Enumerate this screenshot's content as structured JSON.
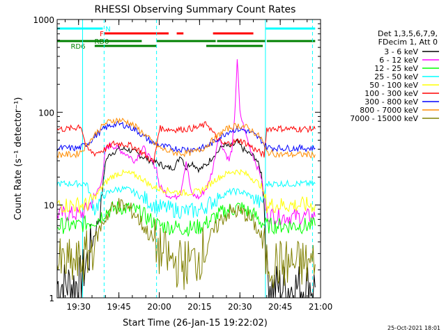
{
  "chart_data": {
    "type": "line",
    "title": "RHESSI Observing Summary Count Rates",
    "xlabel": "Start Time (26-Jan-15 19:22:02)",
    "ylabel": "Count Rate (s⁻¹ detector⁻¹)",
    "y_scale": "log",
    "ylim": [
      1,
      1000
    ],
    "xlim": [
      "19:22:02",
      "21:00:00"
    ],
    "x_unit": "time of day (HH:MM)",
    "x_ticks": [
      "19:30",
      "19:45",
      "20:00",
      "20:15",
      "20:30",
      "20:45",
      "21:00"
    ],
    "y_ticks": [
      "1",
      "10",
      "100",
      "1000"
    ],
    "timestamp": "25-Oct-2021 18:01",
    "legend_header": [
      "Det 1,3,5,6,7,9,",
      "FDecim 1, Att 0"
    ],
    "vertical_lines": [
      {
        "time": "19:31:30",
        "style": "solid",
        "color": "#00ffff"
      },
      {
        "time": "19:39:30",
        "style": "dashed",
        "color": "#00ffff"
      },
      {
        "time": "19:59:00",
        "style": "dashed",
        "color": "#00ffff"
      },
      {
        "time": "20:39:30",
        "style": "solid",
        "color": "#00ffff"
      },
      {
        "time": "20:57:00",
        "style": "dashed",
        "color": "#00ffff"
      }
    ],
    "flag_bars": [
      {
        "label": "N",
        "color": "#00ffff",
        "row": 1,
        "segments": [
          [
            "19:22:02",
            "19:39:00"
          ],
          [
            "20:39:30",
            "20:58:00"
          ]
        ]
      },
      {
        "label": "F",
        "color": "#ff0000",
        "row": 2,
        "segments": [
          [
            "19:39:30",
            "20:03:30"
          ],
          [
            "20:06:30",
            "20:09:00"
          ],
          [
            "20:20:00",
            "20:35:00"
          ]
        ]
      },
      {
        "label": "RD0",
        "color": "#008000",
        "row": 3,
        "segments": [
          [
            "19:22:02",
            "19:53:30"
          ],
          [
            "19:59:00",
            "20:21:00"
          ],
          [
            "20:21:30",
            "20:39:30"
          ],
          [
            "20:40:00",
            "20:58:00"
          ]
        ]
      },
      {
        "label": "RD6",
        "color": "#008000",
        "row": 4,
        "segments": [
          [
            "19:36:00",
            "19:59:00"
          ],
          [
            "20:17:30",
            "20:38:30"
          ]
        ]
      }
    ],
    "series": [
      {
        "name": "3 - 6 keV",
        "color": "#000000",
        "times": [
          "19:22",
          "19:29",
          "19:30",
          "19:31",
          "19:32",
          "19:34",
          "19:36",
          "19:38",
          "19:40",
          "19:42",
          "19:45",
          "19:48",
          "19:51",
          "19:54",
          "19:57",
          "20:00",
          "20:03",
          "20:06",
          "20:08",
          "20:10",
          "20:12",
          "20:15",
          "20:18",
          "20:20",
          "20:22",
          "20:24",
          "20:26",
          "20:28",
          "20:29",
          "20:30",
          "20:32",
          "20:34",
          "20:36",
          "20:38",
          "20:39",
          "20:40",
          "20:42",
          "20:44",
          "20:48",
          "20:52",
          "20:56",
          "20:58"
        ],
        "values": [
          1.4,
          1.4,
          1.5,
          1.6,
          2.0,
          3.0,
          5.0,
          8.0,
          30,
          36,
          40,
          40,
          37,
          33,
          30,
          28,
          25,
          26,
          35,
          25,
          29,
          24,
          28,
          34,
          38,
          45,
          42,
          45,
          48,
          44,
          38,
          35,
          32,
          22,
          10,
          2.0,
          1.3,
          1.3,
          1.3,
          1.3,
          1.4,
          1.3
        ]
      },
      {
        "name": "6 - 12 keV",
        "color": "#ff00ff",
        "times": [
          "19:22",
          "19:29",
          "19:31",
          "19:33",
          "19:36",
          "19:39",
          "19:40",
          "19:42",
          "19:45",
          "19:48",
          "19:51",
          "19:54",
          "19:57",
          "19:59",
          "20:00",
          "20:03",
          "20:06",
          "20:08",
          "20:10",
          "20:12",
          "20:15",
          "20:18",
          "20:20",
          "20:22",
          "20:24",
          "20:26",
          "20:27",
          "20:28",
          "20:29",
          "20:30",
          "20:32",
          "20:34",
          "20:36",
          "20:38",
          "20:39",
          "20:40",
          "20:44",
          "20:50",
          "20:56",
          "20:58"
        ],
        "values": [
          8,
          8,
          8,
          9,
          12,
          20,
          40,
          45,
          40,
          35,
          30,
          42,
          30,
          25,
          16,
          13,
          12,
          14,
          30,
          13,
          12,
          16,
          25,
          55,
          40,
          30,
          40,
          80,
          380,
          100,
          60,
          40,
          28,
          20,
          12,
          8,
          7.5,
          7.5,
          7.5,
          7.5
        ]
      },
      {
        "name": "12 - 25 keV",
        "color": "#00ff00",
        "times": [
          "19:22",
          "19:30",
          "19:34",
          "19:37",
          "19:40",
          "19:43",
          "19:46",
          "19:49",
          "19:52",
          "19:55",
          "19:58",
          "20:00",
          "20:05",
          "20:10",
          "20:15",
          "20:18",
          "20:21",
          "20:24",
          "20:27",
          "20:30",
          "20:33",
          "20:36",
          "20:38",
          "20:40",
          "20:45",
          "20:50",
          "20:58"
        ],
        "values": [
          6,
          6,
          6.5,
          7,
          8.5,
          9,
          9.5,
          9,
          8.5,
          7.5,
          6.5,
          6,
          5.8,
          5.6,
          5.8,
          6.5,
          7.5,
          8.5,
          9,
          9.5,
          8.5,
          7.5,
          6.5,
          6,
          6,
          6,
          6
        ]
      },
      {
        "name": "25 - 50 keV",
        "color": "#00ffff",
        "times": [
          "19:22",
          "19:30",
          "19:33",
          "19:36",
          "19:38",
          "19:40",
          "19:43",
          "19:46",
          "19:49",
          "19:52",
          "19:55",
          "19:58",
          "20:00",
          "20:05",
          "20:10",
          "20:15",
          "20:18",
          "20:21",
          "20:24",
          "20:27",
          "20:30",
          "20:33",
          "20:36",
          "20:38",
          "20:40",
          "20:45",
          "20:50",
          "20:58"
        ],
        "values": [
          17,
          17,
          17,
          9,
          11,
          13,
          14.5,
          15,
          14.5,
          13,
          11.5,
          10,
          9.5,
          9,
          8.5,
          8.8,
          10,
          11.5,
          13,
          14,
          14,
          13,
          11.5,
          10,
          17,
          17,
          17,
          17
        ]
      },
      {
        "name": "50 - 100 keV",
        "color": "#ffff00",
        "times": [
          "19:22",
          "19:30",
          "19:31",
          "19:33",
          "19:36",
          "19:39",
          "19:42",
          "19:45",
          "19:48",
          "19:51",
          "19:54",
          "19:57",
          "20:00",
          "20:05",
          "20:10",
          "20:15",
          "20:18",
          "20:21",
          "20:24",
          "20:27",
          "20:30",
          "20:33",
          "20:36",
          "20:38",
          "20:40",
          "20:45",
          "20:58"
        ],
        "values": [
          10,
          10,
          10,
          10,
          12,
          16,
          20,
          22,
          22,
          21,
          19,
          16,
          15,
          14,
          13.5,
          14,
          16,
          19,
          21,
          23,
          23,
          21,
          18,
          16,
          10,
          10,
          10
        ]
      },
      {
        "name": "100 - 300 keV",
        "color": "#ff0000",
        "times": [
          "19:22",
          "19:26",
          "19:29",
          "19:30",
          "19:31",
          "19:33",
          "19:36",
          "19:40",
          "19:43",
          "19:46",
          "19:49",
          "19:52",
          "19:55",
          "19:58",
          "20:00",
          "20:05",
          "20:10",
          "20:14",
          "20:18",
          "20:20",
          "20:22",
          "20:24",
          "20:27",
          "20:30",
          "20:33",
          "20:36",
          "20:38",
          "20:39",
          "20:40",
          "20:44",
          "20:50",
          "20:58"
        ],
        "values": [
          66,
          66,
          68,
          72,
          70,
          40,
          36,
          40,
          46,
          46,
          44,
          40,
          34,
          29,
          67,
          65,
          66,
          68,
          75,
          60,
          50,
          45,
          47,
          50,
          45,
          39,
          36,
          34,
          67,
          67,
          66,
          66
        ]
      },
      {
        "name": "300 - 800 keV",
        "color": "#0000ff",
        "times": [
          "19:22",
          "19:30",
          "19:31",
          "19:34",
          "19:37",
          "19:40",
          "19:43",
          "19:46",
          "19:49",
          "19:52",
          "19:55",
          "19:58",
          "20:01",
          "20:05",
          "20:09",
          "20:13",
          "20:17",
          "20:20",
          "20:23",
          "20:26",
          "20:29",
          "20:32",
          "20:35",
          "20:38",
          "20:40",
          "20:45",
          "20:50",
          "20:58"
        ],
        "values": [
          41,
          41,
          42,
          48,
          58,
          68,
          74,
          74,
          70,
          62,
          53,
          46,
          43,
          41,
          40,
          40,
          42,
          47,
          55,
          63,
          66,
          64,
          58,
          50,
          42,
          41,
          41,
          41
        ]
      },
      {
        "name": "800 - 7000 keV",
        "color": "#ff8c00",
        "times": [
          "19:22",
          "19:29",
          "19:31",
          "19:34",
          "19:37",
          "19:40",
          "19:43",
          "19:46",
          "19:49",
          "19:52",
          "19:55",
          "19:58",
          "20:01",
          "20:05",
          "20:09",
          "20:13",
          "20:17",
          "20:20",
          "20:23",
          "20:26",
          "20:29",
          "20:32",
          "20:35",
          "20:38",
          "20:40",
          "20:45",
          "20:50",
          "20:58"
        ],
        "values": [
          35,
          35,
          38,
          48,
          62,
          76,
          82,
          82,
          77,
          67,
          56,
          46,
          40,
          37,
          36,
          37,
          42,
          50,
          60,
          68,
          72,
          70,
          62,
          52,
          37,
          35,
          35,
          35
        ]
      },
      {
        "name": "7000 - 15000 keV",
        "color": "#808000",
        "times": [
          "19:22",
          "19:30",
          "19:33",
          "19:36",
          "19:39",
          "19:42",
          "19:45",
          "19:48",
          "19:51",
          "19:54",
          "19:57",
          "20:00",
          "20:05",
          "20:10",
          "20:14",
          "20:17",
          "20:20",
          "20:23",
          "20:26",
          "20:29",
          "20:32",
          "20:35",
          "20:38",
          "20:40",
          "20:45",
          "20:50",
          "20:58"
        ],
        "values": [
          2.3,
          2.3,
          2.8,
          4.0,
          6.5,
          9.0,
          10.0,
          9.5,
          8.0,
          6.0,
          4.5,
          3.2,
          2.4,
          2.3,
          2.6,
          3.5,
          5.0,
          7.0,
          8.3,
          8.5,
          8.0,
          6.5,
          4.5,
          2.4,
          2.3,
          2.3,
          2.3
        ]
      }
    ]
  }
}
